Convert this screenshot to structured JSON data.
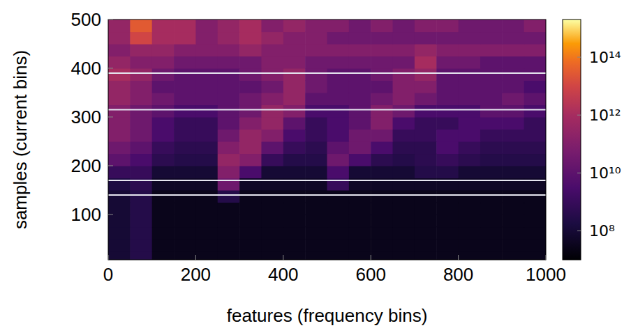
{
  "chart_data": {
    "type": "heatmap",
    "x_label": "features (frequency bins)",
    "y_label": "samples (current bins)",
    "xlim": [
      0,
      1000
    ],
    "ylim": [
      7,
      500
    ],
    "xticks": [
      0,
      200,
      400,
      600,
      800,
      1000
    ],
    "yticks": [
      100,
      200,
      300,
      400,
      500
    ],
    "x_edges": [
      0,
      50,
      100,
      150,
      200,
      250,
      300,
      350,
      400,
      450,
      500,
      550,
      600,
      650,
      700,
      750,
      800,
      850,
      900,
      950,
      1000
    ],
    "y_edges": [
      0,
      25,
      50,
      75,
      100,
      125,
      150,
      175,
      200,
      225,
      250,
      275,
      300,
      325,
      350,
      375,
      400,
      425,
      450,
      475,
      500
    ],
    "values": [
      [
        100000000.0,
        300000000.0,
        30000000.0,
        30000000.0,
        30000000.0,
        30000000.0,
        30000000.0,
        30000000.0,
        30000000.0,
        30000000.0,
        30000000.0,
        30000000.0,
        30000000.0,
        30000000.0,
        30000000.0,
        30000000.0,
        30000000.0,
        30000000.0,
        30000000.0,
        30000000.0
      ],
      [
        100000000.0,
        300000000.0,
        30000000.0,
        30000000.0,
        30000000.0,
        30000000.0,
        30000000.0,
        30000000.0,
        30000000.0,
        30000000.0,
        30000000.0,
        30000000.0,
        30000000.0,
        30000000.0,
        30000000.0,
        30000000.0,
        30000000.0,
        30000000.0,
        30000000.0,
        30000000.0
      ],
      [
        100000000.0,
        300000000.0,
        30000000.0,
        30000000.0,
        30000000.0,
        30000000.0,
        30000000.0,
        30000000.0,
        30000000.0,
        30000000.0,
        30000000.0,
        30000000.0,
        30000000.0,
        30000000.0,
        30000000.0,
        30000000.0,
        30000000.0,
        30000000.0,
        30000000.0,
        30000000.0
      ],
      [
        100000000.0,
        300000000.0,
        30000000.0,
        30000000.0,
        30000000.0,
        30000000.0,
        30000000.0,
        30000000.0,
        30000000.0,
        30000000.0,
        30000000.0,
        30000000.0,
        30000000.0,
        30000000.0,
        30000000.0,
        30000000.0,
        30000000.0,
        30000000.0,
        30000000.0,
        30000000.0
      ],
      [
        100000000.0,
        300000000.0,
        30000000.0,
        30000000.0,
        30000000.0,
        30000000.0,
        30000000.0,
        30000000.0,
        30000000.0,
        30000000.0,
        30000000.0,
        30000000.0,
        30000000.0,
        30000000.0,
        30000000.0,
        30000000.0,
        30000000.0,
        30000000.0,
        30000000.0,
        30000000.0
      ],
      [
        100000000.0,
        300000000.0,
        30000000.0,
        30000000.0,
        30000000.0,
        300000000.0,
        30000000.0,
        30000000.0,
        30000000.0,
        30000000.0,
        30000000.0,
        30000000.0,
        30000000.0,
        30000000.0,
        30000000.0,
        30000000.0,
        30000000.0,
        30000000.0,
        30000000.0,
        30000000.0
      ],
      [
        200000000.0,
        500000000.0,
        50000000.0,
        50000000.0,
        50000000.0,
        30000000000.0,
        50000000.0,
        50000000.0,
        50000000.0,
        50000000.0,
        1000000000.0,
        50000000.0,
        50000000.0,
        50000000.0,
        50000000.0,
        50000000.0,
        50000000.0,
        50000000.0,
        50000000.0,
        50000000.0
      ],
      [
        1000000000.0,
        1000000000.0,
        100000000.0,
        100000000.0,
        100000000.0,
        100000000000.0,
        3000000000.0,
        100000000.0,
        100000000.0,
        100000000.0,
        3000000000.0,
        100000000.0,
        100000000.0,
        100000000.0,
        300000000.0,
        300000000.0,
        100000000.0,
        100000000.0,
        100000000.0,
        100000000.0
      ],
      [
        10000000000.0,
        3000000000.0,
        500000000.0,
        300000000.0,
        300000000.0,
        300000000000.0,
        100000000000.0,
        1000000000.0,
        300000000.0,
        300000000.0,
        30000000000.0,
        3000000000.0,
        500000000.0,
        300000000.0,
        500000000.0,
        1000000000.0,
        500000000.0,
        300000000.0,
        300000000.0,
        300000000.0
      ],
      [
        30000000000.0,
        10000000000.0,
        1000000000.0,
        500000000.0,
        500000000.0,
        100000000000.0,
        300000000000.0,
        10000000000.0,
        1000000000.0,
        500000000.0,
        10000000000.0,
        30000000000.0,
        3000000000.0,
        500000000.0,
        500000000.0,
        3000000000.0,
        1000000000.0,
        500000000.0,
        500000000.0,
        500000000.0
      ],
      [
        100000000000.0,
        30000000000.0,
        3000000000.0,
        1000000000.0,
        1000000000.0,
        30000000000.0,
        300000000000.0,
        100000000000.0,
        3000000000.0,
        1000000000.0,
        3000000000.0,
        30000000000.0,
        30000000000.0,
        1000000000.0,
        1000000000.0,
        3000000000.0,
        3000000000.0,
        1000000000.0,
        1000000000.0,
        1000000000.0
      ],
      [
        100000000000.0,
        30000000000.0,
        3000000000.0,
        1000000000.0,
        1000000000.0,
        10000000000.0,
        100000000000.0,
        300000000000.0,
        10000000000.0,
        1000000000.0,
        3000000000.0,
        10000000000.0,
        100000000000.0,
        3000000000.0,
        1000000000.0,
        1000000000.0,
        3000000000.0,
        3000000000.0,
        3000000000.0,
        1000000000.0
      ],
      [
        100000000000.0,
        30000000000.0,
        10000000000.0,
        3000000000.0,
        3000000000.0,
        10000000000.0,
        30000000000.0,
        300000000000.0,
        100000000000.0,
        3000000000.0,
        3000000000.0,
        10000000000.0,
        100000000000.0,
        30000000000.0,
        3000000000.0,
        3000000000.0,
        3000000000.0,
        10000000000.0,
        10000000000.0,
        3000000000.0
      ],
      [
        300000000000.0,
        100000000000.0,
        30000000000.0,
        10000000000.0,
        10000000000.0,
        10000000000.0,
        30000000000.0,
        100000000000.0,
        300000000000.0,
        10000000000.0,
        10000000000.0,
        10000000000.0,
        30000000000.0,
        100000000000.0,
        30000000000.0,
        10000000000.0,
        10000000000.0,
        10000000000.0,
        30000000000.0,
        10000000000.0
      ],
      [
        300000000000.0,
        100000000000.0,
        10000000000.0,
        10000000000.0,
        10000000000.0,
        10000000000.0,
        10000000000.0,
        30000000000.0,
        300000000000.0,
        30000000000.0,
        10000000000.0,
        10000000000.0,
        10000000000.0,
        100000000000.0,
        100000000000.0,
        10000000000.0,
        10000000000.0,
        10000000000.0,
        10000000000.0,
        3000000000.0
      ],
      [
        1000000000000.0,
        300000000000.0,
        30000000000.0,
        10000000000.0,
        10000000000.0,
        10000000000.0,
        30000000000.0,
        100000000000.0,
        300000000000.0,
        30000000000.0,
        10000000000.0,
        10000000000.0,
        30000000000.0,
        100000000000.0,
        300000000000.0,
        10000000000.0,
        10000000000.0,
        10000000000.0,
        10000000000.0,
        10000000000.0
      ],
      [
        300000000000.0,
        100000000000.0,
        100000000000.0,
        30000000000.0,
        30000000000.0,
        30000000000.0,
        30000000000.0,
        100000000000.0,
        100000000000.0,
        30000000000.0,
        30000000000.0,
        30000000000.0,
        30000000000.0,
        30000000000.0,
        1000000000000.0,
        30000000000.0,
        30000000000.0,
        10000000000.0,
        10000000000.0,
        10000000000.0
      ],
      [
        100000000000.0,
        300000000000.0,
        300000000000.0,
        100000000000.0,
        100000000000.0,
        100000000000.0,
        300000000000.0,
        100000000000.0,
        100000000000.0,
        100000000000.0,
        100000000000.0,
        100000000000.0,
        100000000000.0,
        100000000000.0,
        300000000000.0,
        100000000000.0,
        100000000000.0,
        100000000000.0,
        100000000000.0,
        100000000000.0
      ],
      [
        300000000000.0,
        10000000000000.0,
        1000000000000.0,
        1000000000000.0,
        100000000000.0,
        300000000000.0,
        1000000000000.0,
        300000000000.0,
        100000000000.0,
        100000000000.0,
        30000000000.0,
        30000000000.0,
        30000000000.0,
        30000000000.0,
        30000000000.0,
        30000000000.0,
        30000000000.0,
        30000000000.0,
        30000000000.0,
        30000000000.0
      ],
      [
        300000000000.0,
        30000000000000.0,
        1000000000000.0,
        1000000000000.0,
        100000000000.0,
        300000000000.0,
        1000000000000.0,
        100000000000.0,
        300000000000.0,
        100000000000.0,
        100000000000.0,
        30000000000.0,
        100000000000.0,
        30000000000.0,
        100000000000.0,
        100000000000.0,
        30000000000.0,
        30000000000.0,
        30000000000.0,
        100000000000.0
      ]
    ],
    "hlines": [
      140,
      170,
      315,
      390
    ],
    "colorbar": {
      "lim": [
        10000000.0,
        2000000000000000.0
      ],
      "log": true,
      "ticks": [
        {
          "value": 100000000.0,
          "label": "10⁸"
        },
        {
          "value": 10000000000.0,
          "label": "10¹⁰"
        },
        {
          "value": 1000000000000.0,
          "label": "10¹²"
        },
        {
          "value": 100000000000000.0,
          "label": "10¹⁴"
        }
      ]
    }
  }
}
